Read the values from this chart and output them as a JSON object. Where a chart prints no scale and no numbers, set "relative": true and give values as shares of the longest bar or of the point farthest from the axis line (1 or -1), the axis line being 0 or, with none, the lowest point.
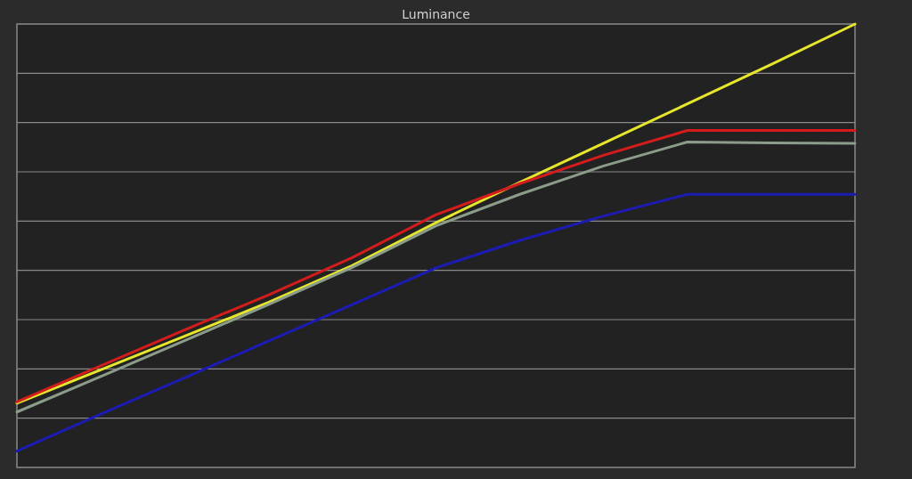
{
  "chart_data": {
    "type": "line",
    "title": "Luminance",
    "relative": true,
    "grid": true,
    "categories": [
      null,
      null,
      null,
      null,
      null,
      null,
      null,
      null,
      null,
      null,
      null
    ],
    "series": [
      {
        "color": "#e6e62c",
        "values": [
          0.145,
          0.22,
          0.296,
          0.372,
          0.455,
          0.552,
          0.643,
          0.731,
          0.82,
          0.909,
          1
        ]
      },
      {
        "color": "#8c9c8a",
        "values": [
          0.125,
          0.205,
          0.286,
          0.367,
          0.451,
          0.545,
          0.616,
          0.68,
          0.734,
          0.732,
          0.731
        ]
      },
      {
        "color": "#1c1cb4",
        "values": [
          0.037,
          0.12,
          0.202,
          0.285,
          0.367,
          0.45,
          0.512,
          0.567,
          0.616,
          0.616,
          0.616
        ]
      },
      {
        "color": "#d41c1c",
        "values": [
          0.148,
          0.229,
          0.31,
          0.389,
          0.473,
          0.57,
          0.64,
          0.704,
          0.76,
          0.76,
          0.76
        ]
      }
    ]
  }
}
